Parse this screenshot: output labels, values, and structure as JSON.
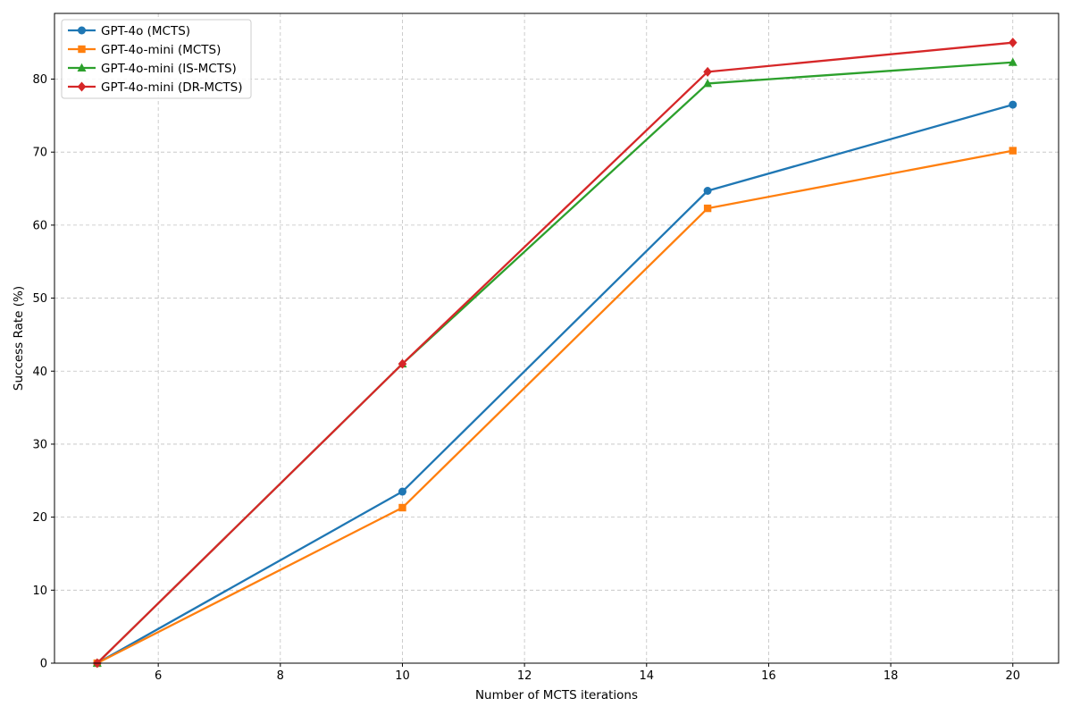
{
  "chart_data": {
    "type": "line",
    "title": "",
    "xlabel": "Number of MCTS iterations",
    "ylabel": "Success Rate (%)",
    "xlim": [
      4.3,
      20.75
    ],
    "ylim": [
      0,
      89
    ],
    "xticks": [
      6,
      8,
      10,
      12,
      14,
      16,
      18,
      20
    ],
    "yticks": [
      0,
      10,
      20,
      30,
      40,
      50,
      60,
      70,
      80
    ],
    "grid": true,
    "legend_position": "top-left",
    "x": [
      5,
      10,
      15,
      20
    ],
    "series": [
      {
        "name": "GPT-4o (MCTS)",
        "values": [
          0,
          23.5,
          64.7,
          76.5
        ],
        "color": "#1f77b4",
        "marker": "circle"
      },
      {
        "name": "GPT-4o-mini (MCTS)",
        "values": [
          0,
          21.3,
          62.3,
          70.2
        ],
        "color": "#ff7f0e",
        "marker": "square"
      },
      {
        "name": "GPT-4o-mini (IS-MCTS)",
        "values": [
          0,
          41.0,
          79.4,
          82.3
        ],
        "color": "#2ca02c",
        "marker": "triangle"
      },
      {
        "name": "GPT-4o-mini (DR-MCTS)",
        "values": [
          0,
          41.0,
          81.0,
          85.0
        ],
        "color": "#d62728",
        "marker": "diamond"
      }
    ]
  }
}
